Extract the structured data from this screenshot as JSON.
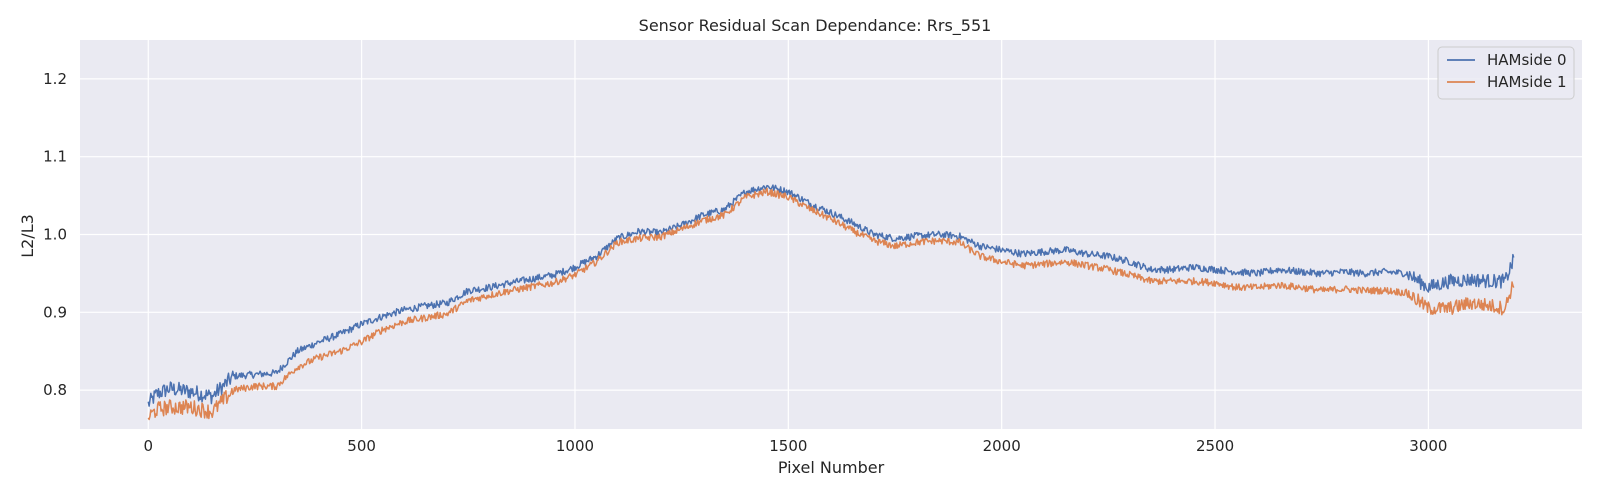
{
  "chart_data": {
    "type": "line",
    "title": "Sensor Residual Scan Dependance: Rrs_551",
    "xlabel": "Pixel Number",
    "ylabel": "L2/L3",
    "xlim": [
      -160,
      3360
    ],
    "ylim": [
      0.75,
      1.25
    ],
    "xticks": [
      0,
      500,
      1000,
      1500,
      2000,
      2500,
      3000
    ],
    "yticks": [
      0.8,
      0.9,
      1.0,
      1.1,
      1.2
    ],
    "xtick_labels": [
      "0",
      "500",
      "1000",
      "1500",
      "2000",
      "2500",
      "3000"
    ],
    "ytick_labels": [
      "0.8",
      "0.9",
      "1.0",
      "1.1",
      "1.2"
    ],
    "grid": true,
    "background": "#eaeaf2",
    "legend_position": "top-right",
    "x": [
      0,
      20,
      50,
      100,
      150,
      200,
      250,
      300,
      350,
      400,
      450,
      500,
      550,
      600,
      650,
      700,
      750,
      800,
      850,
      900,
      950,
      1000,
      1050,
      1100,
      1150,
      1200,
      1250,
      1300,
      1350,
      1400,
      1450,
      1500,
      1550,
      1600,
      1650,
      1700,
      1750,
      1800,
      1850,
      1900,
      1950,
      2000,
      2050,
      2100,
      2150,
      2200,
      2250,
      2300,
      2350,
      2400,
      2450,
      2500,
      2550,
      2600,
      2650,
      2700,
      2750,
      2800,
      2850,
      2900,
      2950,
      3000,
      3050,
      3100,
      3150,
      3180,
      3200
    ],
    "series": [
      {
        "name": "HAMside 0",
        "color": "#4c72b0",
        "values": [
          0.782,
          0.795,
          0.802,
          0.798,
          0.792,
          0.818,
          0.82,
          0.822,
          0.85,
          0.862,
          0.872,
          0.885,
          0.895,
          0.903,
          0.908,
          0.912,
          0.928,
          0.932,
          0.938,
          0.943,
          0.948,
          0.958,
          0.972,
          0.995,
          1.004,
          1.002,
          1.012,
          1.025,
          1.032,
          1.055,
          1.062,
          1.055,
          1.04,
          1.028,
          1.015,
          1.0,
          0.995,
          0.998,
          1.0,
          0.998,
          0.985,
          0.98,
          0.975,
          0.978,
          0.98,
          0.975,
          0.972,
          0.965,
          0.955,
          0.955,
          0.958,
          0.955,
          0.952,
          0.95,
          0.955,
          0.952,
          0.95,
          0.952,
          0.95,
          0.952,
          0.95,
          0.932,
          0.94,
          0.942,
          0.94,
          0.94,
          0.968
        ]
      },
      {
        "name": "HAMside 1",
        "color": "#dd8452",
        "values": [
          0.765,
          0.775,
          0.778,
          0.778,
          0.772,
          0.8,
          0.805,
          0.805,
          0.83,
          0.842,
          0.85,
          0.862,
          0.878,
          0.888,
          0.893,
          0.898,
          0.915,
          0.922,
          0.928,
          0.933,
          0.938,
          0.948,
          0.965,
          0.99,
          0.995,
          0.997,
          1.007,
          1.018,
          1.025,
          1.048,
          1.055,
          1.048,
          1.033,
          1.02,
          1.005,
          0.992,
          0.985,
          0.99,
          0.992,
          0.99,
          0.972,
          0.965,
          0.96,
          0.962,
          0.965,
          0.96,
          0.955,
          0.948,
          0.94,
          0.94,
          0.94,
          0.938,
          0.932,
          0.932,
          0.935,
          0.932,
          0.928,
          0.93,
          0.928,
          0.928,
          0.925,
          0.905,
          0.905,
          0.912,
          0.908,
          0.905,
          0.94
        ]
      }
    ]
  }
}
